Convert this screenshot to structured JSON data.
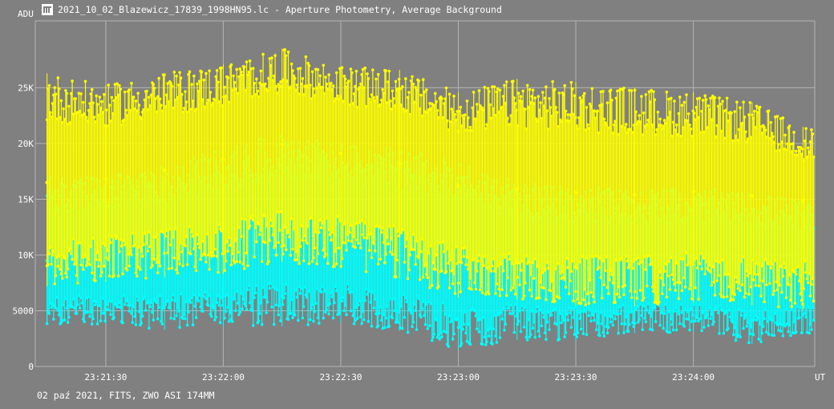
{
  "window": {
    "title": "2021_10_02_Blazewicz_17839_1998HN95.lc - Aperture Photometry, Average Background",
    "footer": "02 paź 2021, FITS, ZWO ASI 174MM",
    "icon": "app-logo-icon"
  },
  "colors": {
    "background": "#808080",
    "grid": "#b4b4b4",
    "text": "#ffffff",
    "series_1": "#00ffff",
    "series_2": "#ffff00"
  },
  "chart_data": {
    "type": "scatter",
    "title": "2021_10_02_Blazewicz_17839_1998HN95.lc - Aperture Photometry, Average Background",
    "xlabel": "UT",
    "ylabel": "ADU",
    "grid": true,
    "xlim": [
      "23:21:12",
      "23:24:31"
    ],
    "ylim": [
      0,
      31000
    ],
    "x_ticks": [
      "23:21:30",
      "23:22:00",
      "23:22:30",
      "23:23:00",
      "23:23:30",
      "23:24:00"
    ],
    "y_ticks": [
      {
        "value": 0,
        "label": "0"
      },
      {
        "value": 5000,
        "label": "5000"
      },
      {
        "value": 10000,
        "label": "10K"
      },
      {
        "value": 15000,
        "label": "15K"
      },
      {
        "value": 20000,
        "label": "20K"
      },
      {
        "value": 25000,
        "label": "25K"
      }
    ],
    "series": [
      {
        "color": "#00ffff",
        "style": "points with vertical error bars",
        "x": [
          "23:21:15",
          "23:21:30",
          "23:21:45",
          "23:22:00",
          "23:22:15",
          "23:22:30",
          "23:22:45",
          "23:23:00",
          "23:23:15",
          "23:23:30",
          "23:23:45",
          "23:24:00",
          "23:24:15",
          "23:24:28"
        ],
        "values": [
          9500,
          9600,
          10300,
          11000,
          12600,
          11900,
          11000,
          10500,
          9600,
          9100,
          8900,
          9000,
          8900,
          8500
        ],
        "min": [
          3700,
          3800,
          3300,
          3600,
          3600,
          3900,
          3200,
          1500,
          2400,
          2300,
          3000,
          3100,
          2000,
          2900
        ],
        "max": [
          17000,
          17000,
          18000,
          19500,
          21000,
          20000,
          19500,
          18500,
          16500,
          16000,
          16000,
          16000,
          15500,
          15000
        ]
      },
      {
        "color": "#ffff00",
        "style": "points with vertical error bars",
        "x": [
          "23:21:15",
          "23:21:30",
          "23:21:45",
          "23:22:00",
          "23:22:15",
          "23:22:30",
          "23:22:45",
          "23:23:00",
          "23:23:15",
          "23:23:30",
          "23:23:45",
          "23:24:00",
          "23:24:15",
          "23:24:28"
        ],
        "values": [
          16500,
          16800,
          17600,
          18600,
          19900,
          19100,
          18200,
          16200,
          15900,
          15600,
          15400,
          15700,
          15300,
          14900
        ],
        "min": [
          7200,
          7600,
          8000,
          8300,
          9400,
          8800,
          7900,
          6200,
          6000,
          5500,
          5400,
          5800,
          5500,
          5100
        ],
        "max": [
          26300,
          25200,
          26300,
          27100,
          28500,
          26900,
          26600,
          24600,
          25800,
          25500,
          25000,
          24600,
          23700,
          21500
        ]
      }
    ]
  }
}
